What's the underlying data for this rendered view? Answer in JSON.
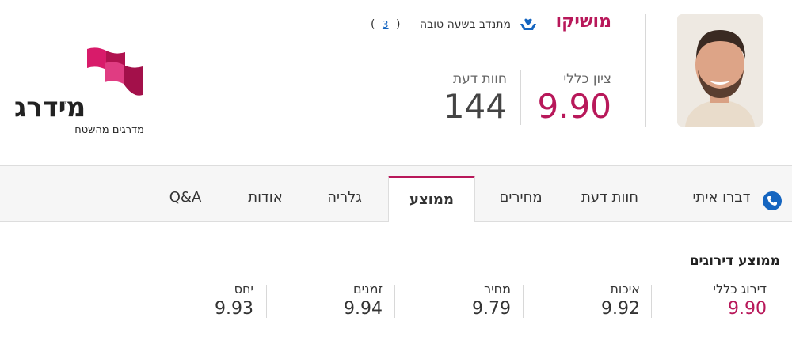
{
  "profile": {
    "name": "מושיקו",
    "volunteer": {
      "label": "מתנדב בשעה טובה",
      "open": "(",
      "count": "3",
      "close": ")"
    },
    "score": {
      "label": "ציון כללי",
      "value": "9.90"
    },
    "reviews": {
      "label": "חוות דעת",
      "value": "144"
    }
  },
  "logo": {
    "name": "מידרג",
    "tm": "™",
    "tagline": "מדרגים מהשטח"
  },
  "tabs": {
    "items": [
      "דברו איתי",
      "חוות דעת",
      "מחירים",
      "ממוצע",
      "גלריה",
      "אודות",
      "Q&A"
    ],
    "active": 3
  },
  "ratings": {
    "title": "ממוצע דירוגים",
    "accent": 0,
    "items": [
      {
        "label": "דירוג כללי",
        "value": "9.90"
      },
      {
        "label": "איכות",
        "value": "9.92"
      },
      {
        "label": "מחיר",
        "value": "9.79"
      },
      {
        "label": "זמנים",
        "value": "9.94"
      },
      {
        "label": "יחס",
        "value": "9.93"
      }
    ]
  }
}
